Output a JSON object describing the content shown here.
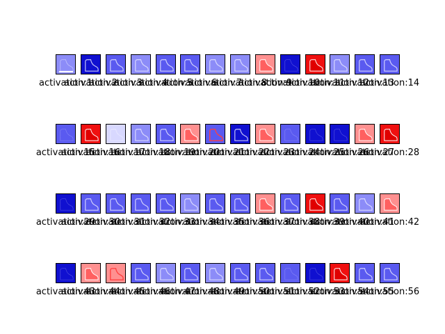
{
  "rows": [
    {
      "cells": [
        {
          "label": "activation:1",
          "tone": "light",
          "shape": "boot-bottom"
        },
        {
          "label": "activation:2",
          "tone": "dark",
          "shape": "boot-outline"
        },
        {
          "label": "activation:3",
          "tone": "mid",
          "shape": "boot-outline"
        },
        {
          "label": "activation:4",
          "tone": "light",
          "shape": "boot-outline"
        },
        {
          "label": "activation:5",
          "tone": "mid",
          "shape": "boot-outline"
        },
        {
          "label": "activation:6",
          "tone": "mid",
          "shape": "boot-outline"
        },
        {
          "label": "activation:7",
          "tone": "light",
          "shape": "boot-outline"
        },
        {
          "label": "activation:8",
          "tone": "light",
          "shape": "boot-outline"
        },
        {
          "label": "activation:9",
          "tone": "red-light",
          "shape": "boot-fill"
        },
        {
          "label": "activation:10",
          "tone": "dark",
          "shape": "boot-faint"
        },
        {
          "label": "activation:11",
          "tone": "red",
          "shape": "boot-fill"
        },
        {
          "label": "activation:12",
          "tone": "light",
          "shape": "boot-outline"
        },
        {
          "label": "activation:13",
          "tone": "mid",
          "shape": "boot-outline"
        },
        {
          "label": "activation:14",
          "tone": "mid",
          "shape": "boot-outline"
        }
      ]
    },
    {
      "cells": [
        {
          "label": "activation:15",
          "tone": "mid",
          "shape": "boot-faint"
        },
        {
          "label": "activation:16",
          "tone": "red",
          "shape": "boot-fill"
        },
        {
          "label": "activation:17",
          "tone": "white",
          "shape": "boot-outline"
        },
        {
          "label": "activation:18",
          "tone": "light",
          "shape": "boot-outline"
        },
        {
          "label": "activation:19",
          "tone": "mid",
          "shape": "boot-outline"
        },
        {
          "label": "activation:20",
          "tone": "red-light",
          "shape": "boot-fill"
        },
        {
          "label": "activation:21",
          "tone": "mid",
          "shape": "boot-red-edge"
        },
        {
          "label": "activation:22",
          "tone": "dark",
          "shape": "boot-outline"
        },
        {
          "label": "activation:23",
          "tone": "red-light",
          "shape": "boot-fill"
        },
        {
          "label": "activation:24",
          "tone": "mid",
          "shape": "boot-faint"
        },
        {
          "label": "activation:25",
          "tone": "dark",
          "shape": "boot-faint"
        },
        {
          "label": "activation:26",
          "tone": "dark",
          "shape": "boot-faint"
        },
        {
          "label": "activation:27",
          "tone": "red-light",
          "shape": "boot-fill"
        },
        {
          "label": "activation:28",
          "tone": "red",
          "shape": "boot-fill"
        }
      ]
    },
    {
      "cells": [
        {
          "label": "activation:29",
          "tone": "dark",
          "shape": "boot-faint"
        },
        {
          "label": "activation:30",
          "tone": "mid",
          "shape": "boot-outline"
        },
        {
          "label": "activation:31",
          "tone": "mid",
          "shape": "boot-outline"
        },
        {
          "label": "activation:32",
          "tone": "mid",
          "shape": "boot-outline"
        },
        {
          "label": "activation:33",
          "tone": "mid",
          "shape": "boot-outline"
        },
        {
          "label": "activation:34",
          "tone": "light",
          "shape": "boot-outline"
        },
        {
          "label": "activation:35",
          "tone": "mid",
          "shape": "boot-outline"
        },
        {
          "label": "activation:36",
          "tone": "mid",
          "shape": "boot-outline"
        },
        {
          "label": "activation:37",
          "tone": "red-light",
          "shape": "boot-fill"
        },
        {
          "label": "activation:38",
          "tone": "mid",
          "shape": "boot-outline"
        },
        {
          "label": "activation:39",
          "tone": "red",
          "shape": "boot-fill"
        },
        {
          "label": "activation:40",
          "tone": "mid",
          "shape": "boot-outline"
        },
        {
          "label": "activation:41",
          "tone": "light",
          "shape": "boot-outline"
        },
        {
          "label": "activation:42",
          "tone": "red-light",
          "shape": "boot-fill"
        }
      ]
    },
    {
      "cells": [
        {
          "label": "activation:43",
          "tone": "dark",
          "shape": "boot-faint"
        },
        {
          "label": "activation:44",
          "tone": "red-light",
          "shape": "boot-fill"
        },
        {
          "label": "activation:45",
          "tone": "red-light",
          "shape": "boot-red-edge"
        },
        {
          "label": "activation:46",
          "tone": "mid",
          "shape": "boot-outline"
        },
        {
          "label": "activation:47",
          "tone": "light",
          "shape": "boot-outline"
        },
        {
          "label": "activation:48",
          "tone": "mid",
          "shape": "boot-outline"
        },
        {
          "label": "activation:49",
          "tone": "light",
          "shape": "boot-outline"
        },
        {
          "label": "activation:50",
          "tone": "mid",
          "shape": "boot-outline"
        },
        {
          "label": "activation:51",
          "tone": "mid",
          "shape": "boot-outline"
        },
        {
          "label": "activation:52",
          "tone": "mid",
          "shape": "boot-faint"
        },
        {
          "label": "activation:53",
          "tone": "dark",
          "shape": "boot-faint"
        },
        {
          "label": "activation:54",
          "tone": "red",
          "shape": "boot-fill"
        },
        {
          "label": "activation:55",
          "tone": "mid",
          "shape": "boot-outline"
        },
        {
          "label": "activation:56",
          "tone": "mid",
          "shape": "boot-outline"
        }
      ]
    }
  ],
  "palette": {
    "dark": "#1010d0",
    "mid": "#5a5af0",
    "light": "#8c8cf8",
    "white": "#d8d8ff",
    "red": "#f01010",
    "red-light": "#ff9090",
    "edge-light": "#e8e8ff",
    "edge-red": "#ff4040"
  }
}
